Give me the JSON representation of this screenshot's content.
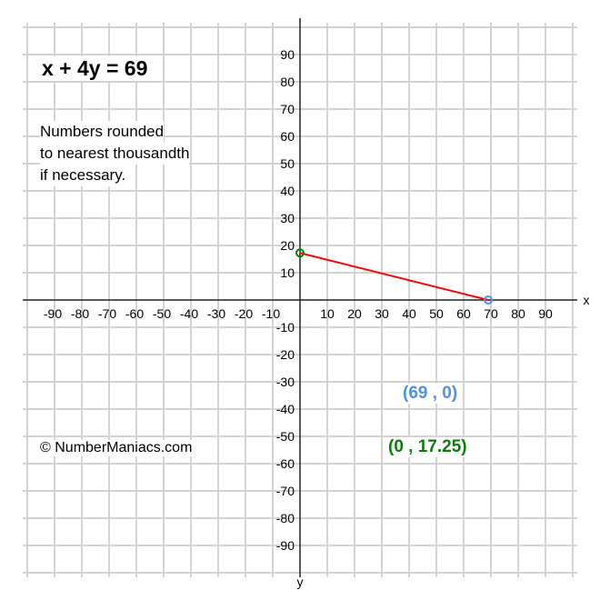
{
  "title": "x + 4y = 69",
  "note_lines": [
    "Numbers rounded",
    "to nearest thousandth",
    "if necessary."
  ],
  "copyright": "© NumberManiacs.com",
  "chart_data": {
    "type": "line",
    "title": "x + 4y = 69",
    "xlabel": "x",
    "ylabel": "y",
    "xlim": [
      -100,
      100
    ],
    "ylim": [
      -100,
      100
    ],
    "grid": true,
    "grid_step": 10,
    "x_ticks": [
      -90,
      -80,
      -70,
      -60,
      -50,
      -40,
      -30,
      -20,
      -10,
      10,
      20,
      30,
      40,
      50,
      60,
      70,
      80,
      90
    ],
    "y_ticks": [
      90,
      80,
      70,
      60,
      50,
      40,
      30,
      20,
      10,
      -10,
      -20,
      -30,
      -40,
      -50,
      -60,
      -70,
      -80,
      -90
    ],
    "series": [
      {
        "x": [
          0,
          69
        ],
        "y": [
          17.25,
          0
        ],
        "color": "#ff0000"
      }
    ],
    "points": [
      {
        "x": 69,
        "y": 0,
        "label": "(69 , 0)",
        "color": "#4f8ff0"
      },
      {
        "x": 0,
        "y": 17.25,
        "label": "(0 , 17.25)",
        "color": "#0a7d0a"
      }
    ]
  }
}
